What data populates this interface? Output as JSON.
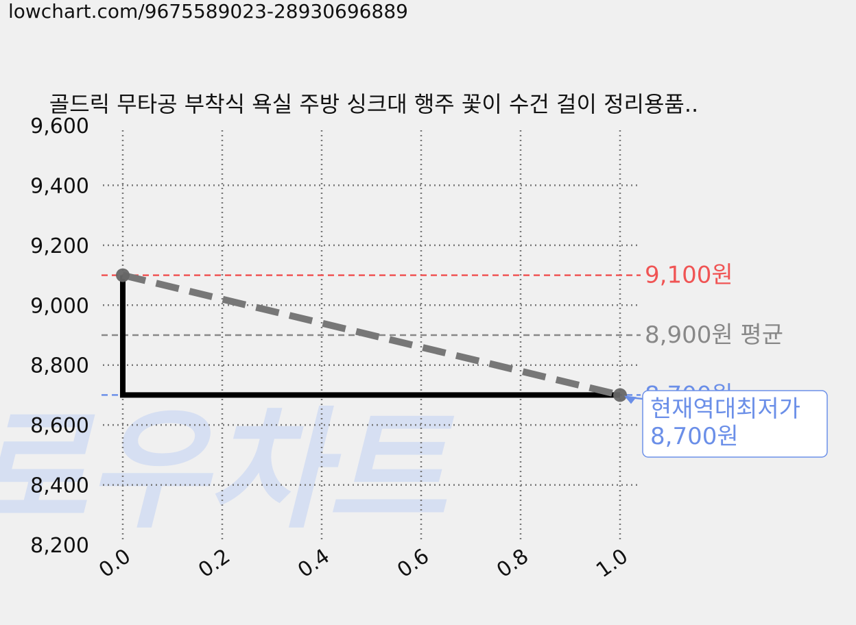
{
  "page": {
    "url": "lowchart.com/9675589023-28930696889"
  },
  "watermark": {
    "text": "로우차트",
    "color": "#d6dff2"
  },
  "chart_data": {
    "type": "line",
    "title": "골드릭 무타공 부착식 욕실 주방 싱크대 행주 꽃이 수건 걸이 정리용품..",
    "xlabel": "",
    "ylabel": "",
    "xlim": [
      0.0,
      1.0
    ],
    "ylim": [
      8200,
      9600
    ],
    "x_ticks": [
      "0.0",
      "0.2",
      "0.4",
      "0.6",
      "0.8",
      "1.0"
    ],
    "y_ticks": [
      "9,600",
      "9,400",
      "9,200",
      "9,000",
      "8,800",
      "8,600",
      "8,400",
      "8,200"
    ],
    "grid": true,
    "series": [
      {
        "style": "step",
        "color": "#000000",
        "x": [
          0.0,
          0.0,
          1.0
        ],
        "y": [
          9100,
          8700,
          8700
        ]
      },
      {
        "style": "dashed-trend",
        "color": "#777777",
        "x": [
          0.0,
          1.0
        ],
        "y": [
          9100,
          8700
        ]
      }
    ],
    "reference_lines": [
      {
        "value": 9100,
        "label": "9,100원",
        "color": "#f05454"
      },
      {
        "value": 8900,
        "label": "8,900원 평균",
        "color": "#888888"
      },
      {
        "value": 8700,
        "label": "8,700원",
        "color": "#6b8fe8"
      }
    ],
    "annotation": {
      "line1": "현재역대최저가",
      "line2": "8,700원",
      "x": 1.0,
      "y": 8700,
      "color": "#6b8fe8"
    }
  }
}
